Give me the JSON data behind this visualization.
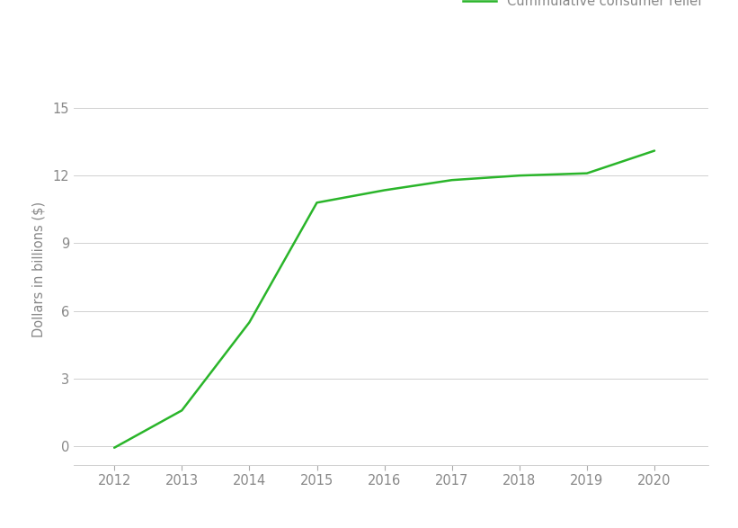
{
  "x_points": [
    2012,
    2013,
    2014,
    2015,
    2016,
    2017,
    2018,
    2019,
    2020
  ],
  "y_points": [
    -0.05,
    1.6,
    5.5,
    10.8,
    11.35,
    11.8,
    12.0,
    12.1,
    13.1
  ],
  "line_color": "#2ab52a",
  "line_width": 1.8,
  "legend_label": "Cummulative consumer relief",
  "ylabel": "Dollars in billions ($)",
  "ylim": [
    -0.8,
    16.5
  ],
  "yticks": [
    0,
    3,
    6,
    9,
    12,
    15
  ],
  "xlim": [
    2011.4,
    2020.8
  ],
  "xticks": [
    2012,
    2013,
    2014,
    2015,
    2016,
    2017,
    2018,
    2019,
    2020
  ],
  "background_color": "#ffffff",
  "grid_color": "#d0d0d0",
  "tick_color": "#aaaaaa",
  "label_color": "#888888",
  "axis_fontsize": 10.5,
  "legend_fontsize": 10.5
}
